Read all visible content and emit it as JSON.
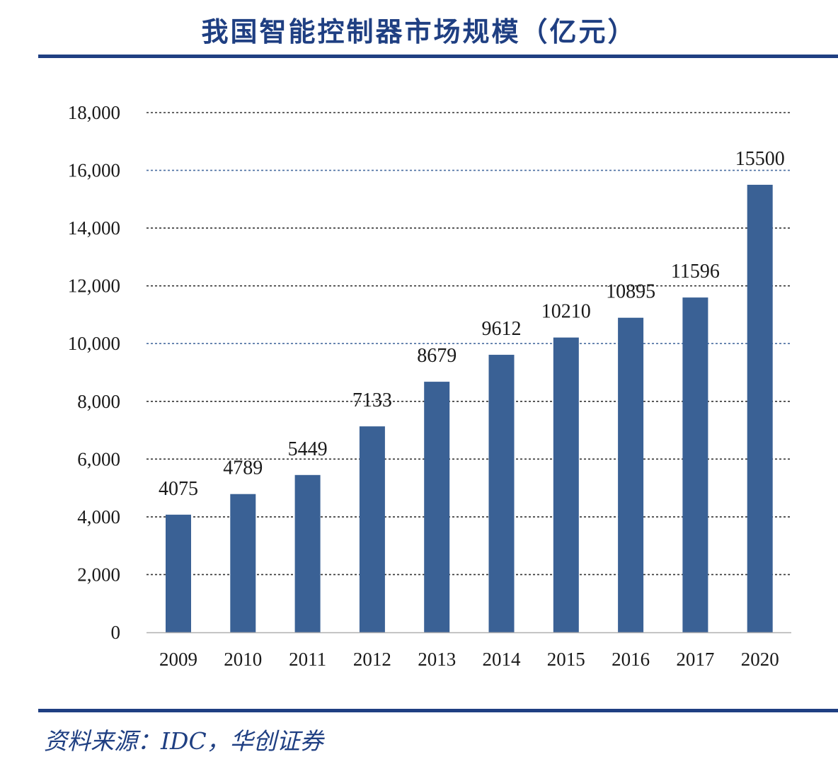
{
  "colors": {
    "accent": "#1f3f82",
    "bar": "#3a6195",
    "grid_dark": "#333333",
    "grid_blue": "#4a6ea0",
    "axis": "#b0b0b0"
  },
  "source": "资料来源：IDC，华创证券",
  "chart_data": {
    "type": "bar",
    "title": "我国智能控制器市场规模（亿元）",
    "xlabel": "",
    "ylabel": "",
    "categories": [
      "2009",
      "2010",
      "2011",
      "2012",
      "2013",
      "2014",
      "2015",
      "2016",
      "2017",
      "2020"
    ],
    "values": [
      4075,
      4789,
      5449,
      7133,
      8679,
      9612,
      10210,
      10895,
      11596,
      15500
    ],
    "data_labels": [
      "4075",
      "4789",
      "5449",
      "7133",
      "8679",
      "9612",
      "10210",
      "10895",
      "11596",
      "15500"
    ],
    "ylim": [
      0,
      18000
    ],
    "yticks": [
      0,
      2000,
      4000,
      6000,
      8000,
      10000,
      12000,
      14000,
      16000,
      18000
    ],
    "ytick_labels": [
      "0",
      "2,000",
      "4,000",
      "6,000",
      "8,000",
      "10,000",
      "12,000",
      "14,000",
      "16,000",
      "18,000"
    ],
    "grid": true,
    "grid_style": "dotted",
    "legend": "none"
  }
}
